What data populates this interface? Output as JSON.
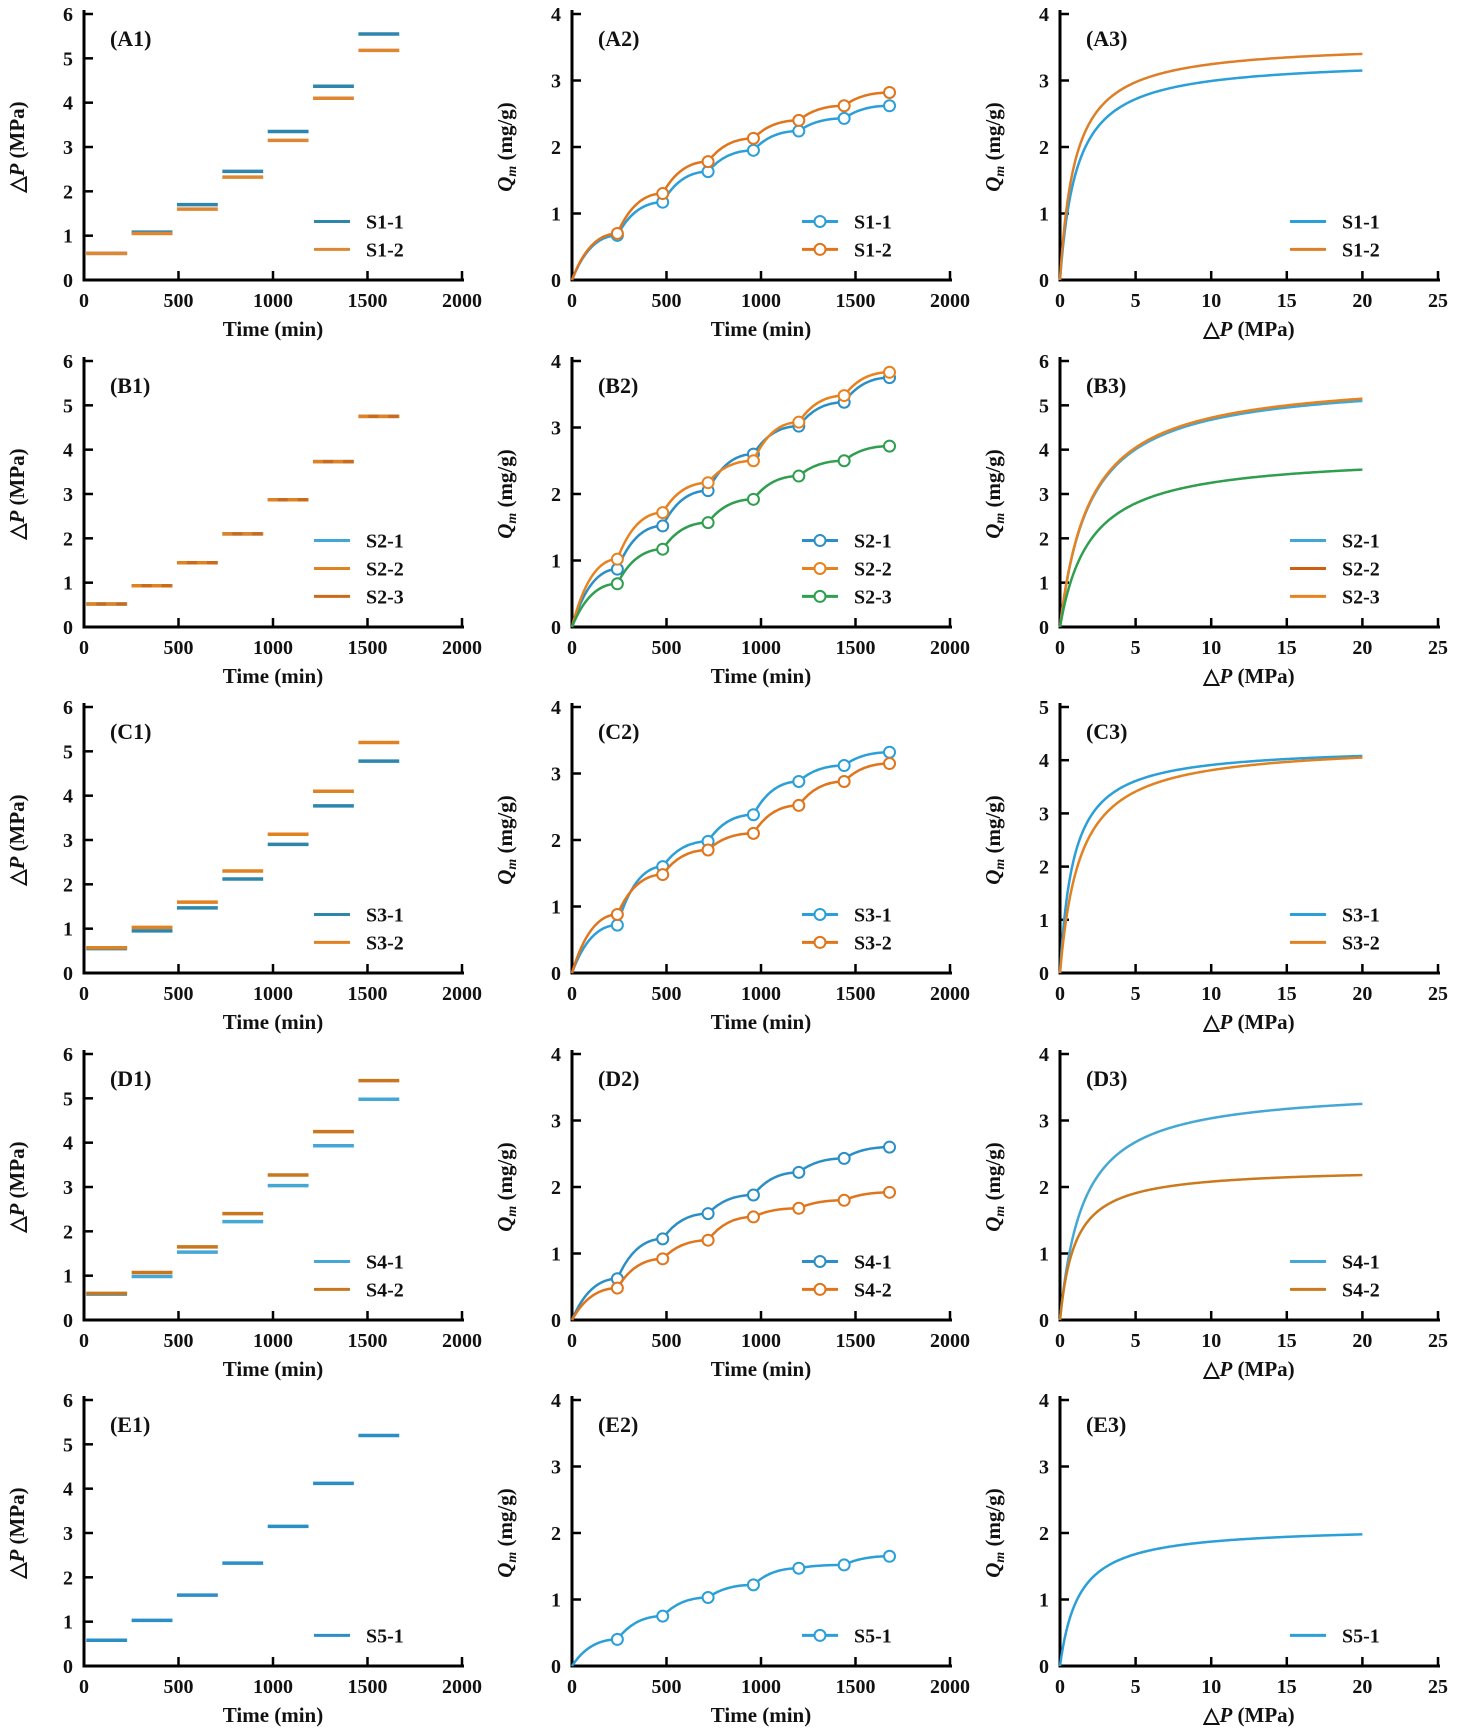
{
  "figure": {
    "description": "5x3 grid of gas adsorption experiment plots: step pressure vs time, adsorbed amount vs time, and adsorption isotherms vs pressure for sample groups S1-S5",
    "rows": [
      "A",
      "B",
      "C",
      "D",
      "E"
    ],
    "columns": [
      "step-pressure-vs-time",
      "adsorption-vs-time",
      "isotherm-vs-pressure"
    ]
  },
  "chart_data": {
    "step_times": [
      0,
      240,
      480,
      720,
      960,
      1200,
      1440,
      1680
    ],
    "panels": [
      {
        "id": "A1",
        "label": "(A1)",
        "type": "steps",
        "xlabel": "Time (min)",
        "ylabel": "△P (MPa)",
        "ylabel_kind": "dp",
        "x": {
          "min": 0,
          "max": 2000,
          "ticks": [
            0,
            500,
            1000,
            1500,
            2000
          ]
        },
        "y": {
          "min": 0,
          "max": 6,
          "ticks": [
            0,
            1,
            2,
            3,
            4,
            5,
            6
          ]
        },
        "series": [
          {
            "name": "S1-1",
            "color": "#2e86ad",
            "values": [
              0.6,
              1.08,
              1.7,
              2.45,
              3.35,
              4.37,
              5.55
            ]
          },
          {
            "name": "S1-2",
            "color": "#dd8733",
            "values": [
              0.6,
              1.05,
              1.6,
              2.32,
              3.15,
              4.1,
              5.18
            ]
          }
        ]
      },
      {
        "id": "A2",
        "label": "(A2)",
        "type": "kinetic",
        "xlabel": "Time (min)",
        "ylabel": "Qm (mg/g)",
        "ylabel_kind": "qm",
        "x": {
          "min": 0,
          "max": 2000,
          "ticks": [
            0,
            500,
            1000,
            1500,
            2000
          ]
        },
        "y": {
          "min": 0,
          "max": 4,
          "ticks": [
            0,
            1,
            2,
            3,
            4
          ]
        },
        "series": [
          {
            "name": "S1-1",
            "color": "#2b9fd8",
            "points": [
              0.67,
              1.17,
              1.63,
              1.95,
              2.24,
              2.43,
              2.62
            ]
          },
          {
            "name": "S1-2",
            "color": "#e0751c",
            "points": [
              0.7,
              1.3,
              1.78,
              2.13,
              2.4,
              2.62,
              2.82
            ]
          }
        ]
      },
      {
        "id": "A3",
        "label": "(A3)",
        "type": "isotherm",
        "xlabel": "△P (MPa)",
        "ylabel": "Qm (mg/g)",
        "ylabel_kind": "qm",
        "x": {
          "min": 0,
          "max": 25,
          "ticks": [
            0,
            5,
            10,
            15,
            20,
            25
          ]
        },
        "y": {
          "min": 0,
          "max": 4,
          "ticks": [
            0,
            1,
            2,
            3,
            4
          ]
        },
        "series": [
          {
            "name": "S1-1",
            "color": "#2b9fd8",
            "q_at_20": 3.15,
            "K": 0.9
          },
          {
            "name": "S1-2",
            "color": "#dd7f28",
            "q_at_20": 3.4,
            "K": 1.0
          }
        ]
      },
      {
        "id": "B1",
        "label": "(B1)",
        "type": "steps",
        "xlabel": "Time (min)",
        "ylabel": "△P (MPa)",
        "ylabel_kind": "dp",
        "x": {
          "min": 0,
          "max": 2000,
          "ticks": [
            0,
            500,
            1000,
            1500,
            2000
          ]
        },
        "y": {
          "min": 0,
          "max": 6,
          "ticks": [
            0,
            1,
            2,
            3,
            4,
            5,
            6
          ]
        },
        "series": [
          {
            "name": "S2-1",
            "color": "#3fa8d4",
            "values": [
              0.52,
              0.93,
              1.45,
              2.1,
              2.87,
              3.73,
              4.75
            ]
          },
          {
            "name": "S2-2",
            "color": "#e08122",
            "dash": "10 10",
            "dashoffset": 0,
            "values": [
              0.52,
              0.93,
              1.45,
              2.1,
              2.87,
              3.73,
              4.75
            ]
          },
          {
            "name": "S2-3",
            "color": "#cd6a1a",
            "dash": "10 10",
            "dashoffset": 10,
            "values": [
              0.52,
              0.93,
              1.45,
              2.1,
              2.87,
              3.73,
              4.75
            ]
          }
        ]
      },
      {
        "id": "B2",
        "label": "(B2)",
        "type": "kinetic",
        "xlabel": "Time (min)",
        "ylabel": "Qm (mg/g)",
        "ylabel_kind": "qm",
        "x": {
          "min": 0,
          "max": 2000,
          "ticks": [
            0,
            500,
            1000,
            1500,
            2000
          ]
        },
        "y": {
          "min": 0,
          "max": 4,
          "ticks": [
            0,
            1,
            2,
            3,
            4
          ]
        },
        "series": [
          {
            "name": "S2-1",
            "color": "#2b8fc6",
            "points": [
              0.87,
              1.52,
              2.05,
              2.6,
              3.02,
              3.38,
              3.75
            ]
          },
          {
            "name": "S2-2",
            "color": "#e8821e",
            "points": [
              1.02,
              1.72,
              2.17,
              2.5,
              3.08,
              3.48,
              3.83
            ]
          },
          {
            "name": "S2-3",
            "color": "#2f9e4f",
            "points": [
              0.65,
              1.17,
              1.57,
              1.92,
              2.27,
              2.5,
              2.72
            ]
          }
        ]
      },
      {
        "id": "B3",
        "label": "(B3)",
        "type": "isotherm",
        "xlabel": "△P (MPa)",
        "ylabel": "Qm (mg/g)",
        "ylabel_kind": "qm",
        "x": {
          "min": 0,
          "max": 25,
          "ticks": [
            0,
            5,
            10,
            15,
            20,
            25
          ]
        },
        "y": {
          "min": 0,
          "max": 6,
          "ticks": [
            0,
            1,
            2,
            3,
            4,
            5,
            6
          ]
        },
        "series": [
          {
            "name": "S2-1",
            "color": "#3fa8d4",
            "q_at_20": 5.1,
            "K": 0.5
          },
          {
            "name": "S2-2",
            "color": "#e8821e",
            "legend_color": "#cd5f12",
            "q_at_20": 5.15,
            "K": 0.5
          },
          {
            "name": "S2-3",
            "color": "#2f9e4f",
            "legend_color": "#e8821e",
            "q_at_20": 3.55,
            "K": 0.5
          }
        ]
      },
      {
        "id": "C1",
        "label": "(C1)",
        "type": "steps",
        "xlabel": "Time (min)",
        "ylabel": "△P (MPa)",
        "ylabel_kind": "dp",
        "x": {
          "min": 0,
          "max": 2000,
          "ticks": [
            0,
            500,
            1000,
            1500,
            2000
          ]
        },
        "y": {
          "min": 0,
          "max": 6,
          "ticks": [
            0,
            1,
            2,
            3,
            4,
            5,
            6
          ]
        },
        "series": [
          {
            "name": "S3-1",
            "color": "#2e86ad",
            "values": [
              0.55,
              0.95,
              1.47,
              2.12,
              2.9,
              3.77,
              4.78
            ]
          },
          {
            "name": "S3-2",
            "color": "#e08122",
            "values": [
              0.57,
              1.03,
              1.6,
              2.3,
              3.13,
              4.1,
              5.2
            ]
          }
        ]
      },
      {
        "id": "C2",
        "label": "(C2)",
        "type": "kinetic",
        "xlabel": "Time (min)",
        "ylabel": "Qm (mg/g)",
        "ylabel_kind": "qm",
        "x": {
          "min": 0,
          "max": 2000,
          "ticks": [
            0,
            500,
            1000,
            1500,
            2000
          ]
        },
        "y": {
          "min": 0,
          "max": 4,
          "ticks": [
            0,
            1,
            2,
            3,
            4
          ]
        },
        "series": [
          {
            "name": "S3-1",
            "color": "#2b9fd8",
            "points": [
              0.72,
              1.6,
              1.98,
              2.38,
              2.88,
              3.12,
              3.32
            ]
          },
          {
            "name": "S3-2",
            "color": "#e0751c",
            "points": [
              0.88,
              1.48,
              1.85,
              2.1,
              2.52,
              2.88,
              3.15
            ]
          }
        ]
      },
      {
        "id": "C3",
        "label": "(C3)",
        "type": "isotherm",
        "xlabel": "△P (MPa)",
        "ylabel": "Qm (mg/g)",
        "ylabel_kind": "qm",
        "x": {
          "min": 0,
          "max": 25,
          "ticks": [
            0,
            5,
            10,
            15,
            20,
            25
          ]
        },
        "y": {
          "min": 0,
          "max": 5,
          "ticks": [
            0,
            1,
            2,
            3,
            4,
            5
          ]
        },
        "series": [
          {
            "name": "S3-1",
            "color": "#2b9fd8",
            "q_at_20": 4.08,
            "K": 1.1
          },
          {
            "name": "S3-2",
            "color": "#e08122",
            "q_at_20": 4.05,
            "K": 0.75
          }
        ]
      },
      {
        "id": "D1",
        "label": "(D1)",
        "type": "steps",
        "xlabel": "Time (min)",
        "ylabel": "△P (MPa)",
        "ylabel_kind": "dp",
        "x": {
          "min": 0,
          "max": 2000,
          "ticks": [
            0,
            500,
            1000,
            1500,
            2000
          ]
        },
        "y": {
          "min": 0,
          "max": 6,
          "ticks": [
            0,
            1,
            2,
            3,
            4,
            5,
            6
          ]
        },
        "series": [
          {
            "name": "S4-1",
            "color": "#45a8d4",
            "values": [
              0.58,
              0.98,
              1.53,
              2.22,
              3.03,
              3.93,
              4.98
            ]
          },
          {
            "name": "S4-2",
            "color": "#c9761f",
            "values": [
              0.6,
              1.07,
              1.65,
              2.4,
              3.27,
              4.25,
              5.4
            ]
          }
        ]
      },
      {
        "id": "D2",
        "label": "(D2)",
        "type": "kinetic",
        "xlabel": "Time (min)",
        "ylabel": "Qm (mg/g)",
        "ylabel_kind": "qm",
        "x": {
          "min": 0,
          "max": 2000,
          "ticks": [
            0,
            500,
            1000,
            1500,
            2000
          ]
        },
        "y": {
          "min": 0,
          "max": 4,
          "ticks": [
            0,
            1,
            2,
            3,
            4
          ]
        },
        "series": [
          {
            "name": "S4-1",
            "color": "#2b8fc6",
            "points": [
              0.62,
              1.22,
              1.6,
              1.88,
              2.22,
              2.43,
              2.6
            ]
          },
          {
            "name": "S4-2",
            "color": "#e0751c",
            "points": [
              0.48,
              0.92,
              1.2,
              1.55,
              1.68,
              1.8,
              1.92
            ]
          }
        ]
      },
      {
        "id": "D3",
        "label": "(D3)",
        "type": "isotherm",
        "xlabel": "△P (MPa)",
        "ylabel": "Qm (mg/g)",
        "ylabel_kind": "qm",
        "x": {
          "min": 0,
          "max": 25,
          "ticks": [
            0,
            5,
            10,
            15,
            20,
            25
          ]
        },
        "y": {
          "min": 0,
          "max": 4,
          "ticks": [
            0,
            1,
            2,
            3,
            4
          ]
        },
        "series": [
          {
            "name": "S4-1",
            "color": "#45a8d4",
            "q_at_20": 3.25,
            "K": 0.65
          },
          {
            "name": "S4-2",
            "color": "#cc7a1e",
            "q_at_20": 2.18,
            "K": 1.0
          }
        ]
      },
      {
        "id": "E1",
        "label": "(E1)",
        "type": "steps",
        "xlabel": "Time (min)",
        "ylabel": "△P (MPa)",
        "ylabel_kind": "dp",
        "x": {
          "min": 0,
          "max": 2000,
          "ticks": [
            0,
            500,
            1000,
            1500,
            2000
          ]
        },
        "y": {
          "min": 0,
          "max": 6,
          "ticks": [
            0,
            1,
            2,
            3,
            4,
            5,
            6
          ]
        },
        "series": [
          {
            "name": "S5-1",
            "color": "#2b8fc6",
            "values": [
              0.58,
              1.03,
              1.6,
              2.32,
              3.15,
              4.12,
              5.2
            ]
          }
        ]
      },
      {
        "id": "E2",
        "label": "(E2)",
        "type": "kinetic",
        "xlabel": "Time (min)",
        "ylabel": "Qm (mg/g)",
        "ylabel_kind": "qm",
        "x": {
          "min": 0,
          "max": 2000,
          "ticks": [
            0,
            500,
            1000,
            1500,
            2000
          ]
        },
        "y": {
          "min": 0,
          "max": 4,
          "ticks": [
            0,
            1,
            2,
            3,
            4
          ]
        },
        "series": [
          {
            "name": "S5-1",
            "color": "#2b9fd8",
            "points": [
              0.4,
              0.75,
              1.03,
              1.22,
              1.47,
              1.52,
              1.65
            ]
          }
        ]
      },
      {
        "id": "E3",
        "label": "(E3)",
        "type": "isotherm",
        "xlabel": "△P (MPa)",
        "ylabel": "Qm (mg/g)",
        "ylabel_kind": "qm",
        "x": {
          "min": 0,
          "max": 25,
          "ticks": [
            0,
            5,
            10,
            15,
            20,
            25
          ]
        },
        "y": {
          "min": 0,
          "max": 4,
          "ticks": [
            0,
            1,
            2,
            3,
            4
          ]
        },
        "series": [
          {
            "name": "S5-1",
            "color": "#2b9fd8",
            "q_at_20": 1.98,
            "K": 0.8
          }
        ]
      }
    ]
  }
}
